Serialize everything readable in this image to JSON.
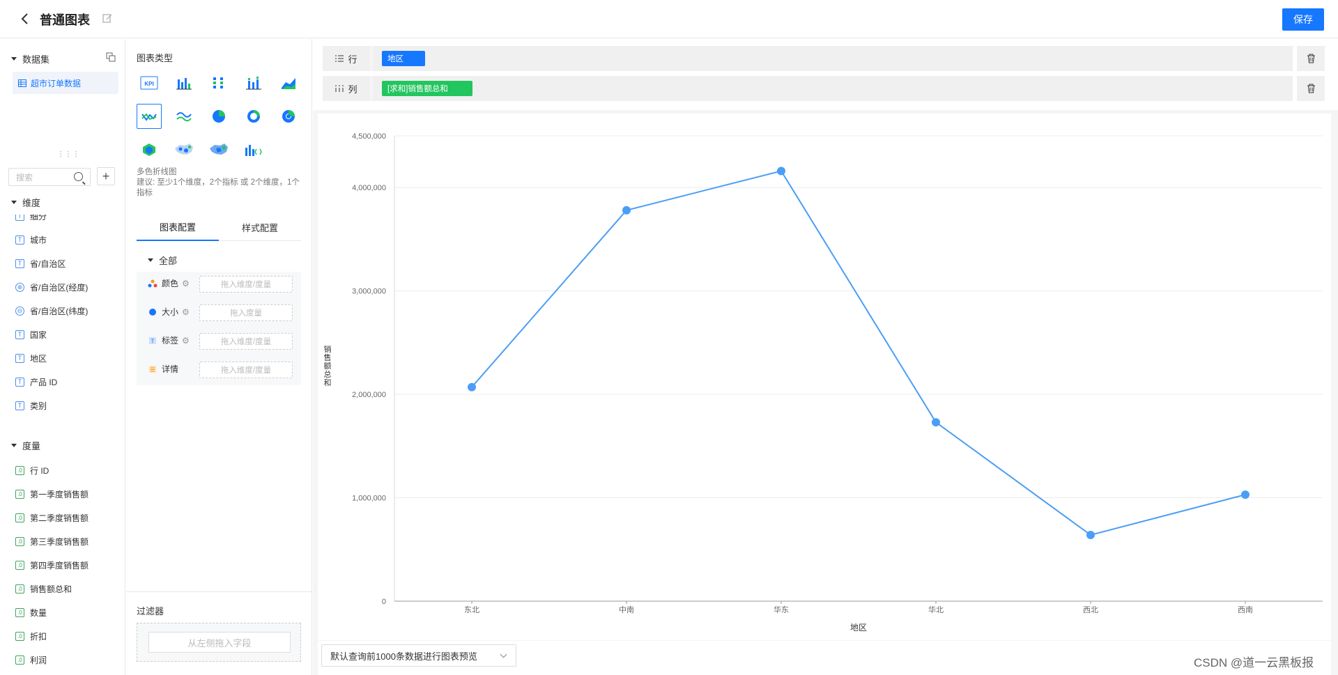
{
  "header": {
    "title": "普通图表",
    "save_label": "保存"
  },
  "dataset": {
    "section_label": "数据集",
    "item": "超市订单数据"
  },
  "search": {
    "placeholder": "搜索"
  },
  "dimensions": {
    "section_label": "维度",
    "items": [
      "细分",
      "城市",
      "省/自治区",
      "省/自治区(经度)",
      "省/自治区(纬度)",
      "国家",
      "地区",
      "产品 ID",
      "类别"
    ]
  },
  "measures": {
    "section_label": "度量",
    "items": [
      "行 ID",
      "第一季度销售额",
      "第二季度销售额",
      "第三季度销售额",
      "第四季度销售额",
      "销售额总和",
      "数量",
      "折扣",
      "利润"
    ]
  },
  "chart_types": {
    "label": "图表类型",
    "selected_name": "多色折线图",
    "suggestion": "建议: 至少1个维度，2个指标 或 2个维度，1个指标"
  },
  "config_tabs": {
    "chart_config": "图表配置",
    "style_config": "样式配置"
  },
  "config": {
    "group": "全部",
    "rows": [
      {
        "label": "颜色",
        "slot": "拖入维度/度量"
      },
      {
        "label": "大小",
        "slot": "拖入度量"
      },
      {
        "label": "标签",
        "slot": "拖入维度/度量"
      },
      {
        "label": "详情",
        "slot": "拖入维度/度量"
      }
    ]
  },
  "filter": {
    "label": "过滤器",
    "placeholder": "从左侧拖入字段"
  },
  "shelves": {
    "row_label": "行",
    "row_pill": "地区",
    "col_label": "列",
    "col_pill": "[求和]销售额总和",
    "row_pill_color": "#1677ff",
    "col_pill_color": "#22c55e"
  },
  "preview": {
    "select_value": "默认查询前1000条数据进行图表预览"
  },
  "watermark": "CSDN @道一云黑板报",
  "chart_data": {
    "type": "line",
    "categories": [
      "东北",
      "中南",
      "华东",
      "华北",
      "西北",
      "西南"
    ],
    "values": [
      2070000,
      3780000,
      4160000,
      1730000,
      640000,
      1030000
    ],
    "xlabel": "地区",
    "ylabel": "销售额总和",
    "ylim": [
      0,
      4500000
    ],
    "yticks": [
      0,
      1000000,
      2000000,
      3000000,
      4000000,
      4500000
    ],
    "ytick_labels": [
      "0",
      "1,000,000",
      "2,000,000",
      "3,000,000",
      "4,000,000",
      "4,500,000"
    ],
    "color": "#4b9ef5",
    "grid": true
  }
}
